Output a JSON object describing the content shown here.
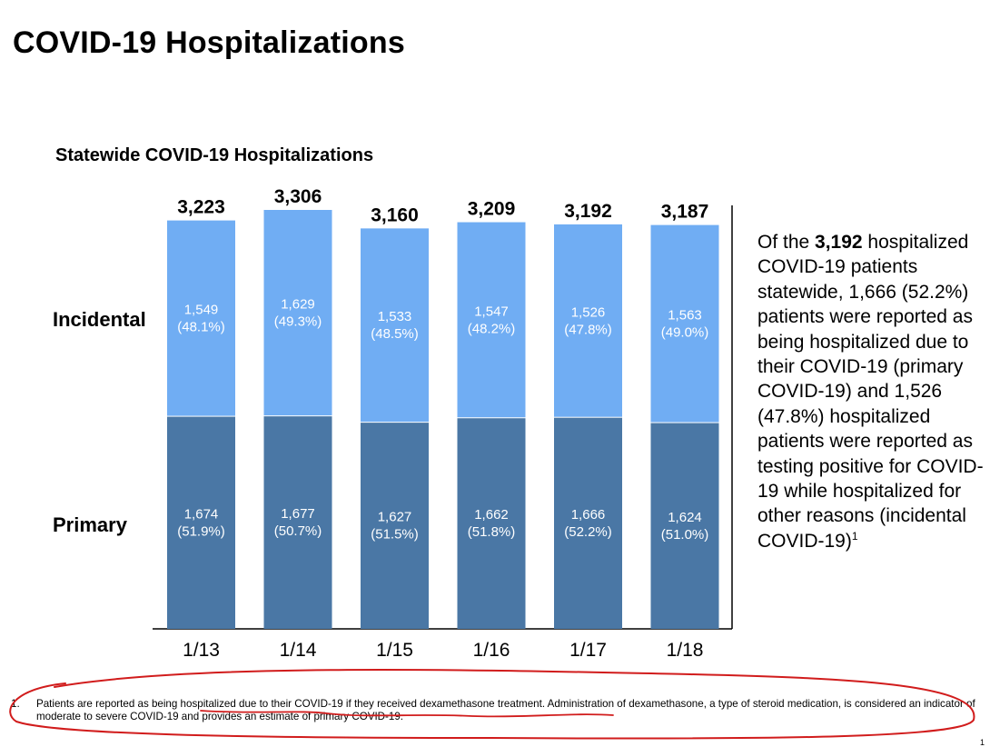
{
  "page": {
    "title": "COVID-19 Hospitalizations"
  },
  "chart_data": {
    "type": "bar",
    "stacked": true,
    "title": "Statewide COVID-19 Hospitalizations",
    "categories": [
      "1/13",
      "1/14",
      "1/15",
      "1/16",
      "1/17",
      "1/18"
    ],
    "series": [
      {
        "name": "Primary",
        "color": "#4a77a5",
        "values": [
          1674,
          1677,
          1627,
          1662,
          1666,
          1624
        ],
        "labels": [
          "1,674",
          "1,677",
          "1,627",
          "1,662",
          "1,666",
          "1,624"
        ],
        "percents": [
          "(51.9%)",
          "(50.7%)",
          "(51.5%)",
          "(51.8%)",
          "(52.2%)",
          "(51.0%)"
        ]
      },
      {
        "name": "Incidental",
        "color": "#70adf3",
        "values": [
          1549,
          1629,
          1533,
          1547,
          1526,
          1563
        ],
        "labels": [
          "1,549",
          "1,629",
          "1,533",
          "1,547",
          "1,526",
          "1,563"
        ],
        "percents": [
          "(48.1%)",
          "(49.3%)",
          "(48.5%)",
          "(48.2%)",
          "(47.8%)",
          "(49.0%)"
        ]
      }
    ],
    "totals": [
      3223,
      3306,
      3160,
      3209,
      3192,
      3187
    ],
    "total_labels": [
      "3,223",
      "3,306",
      "3,160",
      "3,209",
      "3,192",
      "3,187"
    ],
    "xlabel": "",
    "ylabel": "",
    "ylim": [
      0,
      3306
    ],
    "grid": false,
    "legend": "left"
  },
  "side_note": {
    "part1": "Of the ",
    "highlight": "3,192",
    "part2": " hospitalized COVID-19 patients statewide, 1,666 (52.2%) patients were reported as being hospitalized due to their COVID-19 (primary COVID-19) and 1,526 (47.8%) hospitalized patients were reported as testing positive for COVID-19 while hospitalized for other reasons (incidental COVID-19)",
    "sup": "1"
  },
  "footnote": {
    "number": "1.",
    "text": "Patients are reported as being hospitalized due to their COVID-19 if they received dexamethasone treatment. Administration of dexamethasone, a type of steroid medication, is considered an indicator of moderate to severe COVID-19 and provides an estimate of primary COVID-19."
  },
  "annotation": {
    "color": "#d11c1c"
  },
  "page_number": "1"
}
